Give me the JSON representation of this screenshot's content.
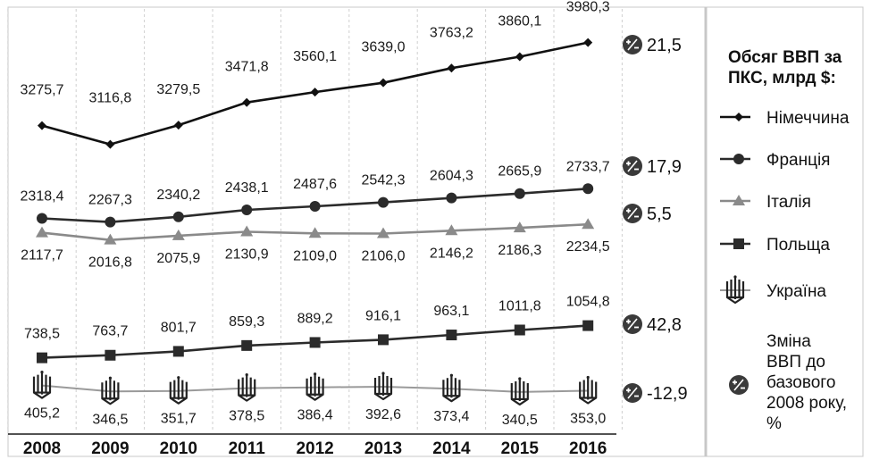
{
  "chart_data": {
    "type": "line",
    "categories": [
      "2008",
      "2009",
      "2010",
      "2011",
      "2012",
      "2013",
      "2014",
      "2015",
      "2016"
    ],
    "series": [
      {
        "name": "Німеччина",
        "marker": "diamond",
        "color": "#111111",
        "values": [
          3275.7,
          3116.8,
          3279.5,
          3471.8,
          3560.1,
          3639.0,
          3763.2,
          3860.1,
          3980.3
        ],
        "labels": [
          "3275,7",
          "3116,8",
          "3279,5",
          "3471,8",
          "3560,1",
          "3639,0",
          "3763,2",
          "3860,1",
          "3980,3"
        ],
        "change": "21,5"
      },
      {
        "name": "Франція",
        "marker": "circle",
        "color": "#2b2b2b",
        "values": [
          2318.4,
          2267.3,
          2340.2,
          2438.1,
          2487.6,
          2542.3,
          2604.3,
          2665.9,
          2733.7
        ],
        "labels": [
          "2318,4",
          "2267,3",
          "2340,2",
          "2438,1",
          "2487,6",
          "2542,3",
          "2604,3",
          "2665,9",
          "2733,7"
        ],
        "change": "17,9"
      },
      {
        "name": "Італія",
        "marker": "triangle",
        "color": "#8a8a8a",
        "values": [
          2117.7,
          2016.8,
          2075.9,
          2130.9,
          2109.0,
          2106.0,
          2146.2,
          2186.3,
          2234.5
        ],
        "labels": [
          "2117,7",
          "2016,8",
          "2075,9",
          "2130,9",
          "2109,0",
          "2106,0",
          "2146,2",
          "2186,3",
          "2234,5"
        ],
        "change": "5,5"
      },
      {
        "name": "Польща",
        "marker": "square",
        "color": "#2b2b2b",
        "values": [
          738.5,
          763.7,
          801.7,
          859.3,
          889.2,
          916.1,
          963.1,
          1011.8,
          1054.8
        ],
        "labels": [
          "738,5",
          "763,7",
          "801,7",
          "859,3",
          "889,2",
          "916,1",
          "963,1",
          "1011,8",
          "1054,8"
        ],
        "change": "42,8"
      },
      {
        "name": "Україна",
        "marker": "trident",
        "color": "#9a9a9a",
        "values": [
          405.2,
          346.5,
          351.7,
          378.5,
          386.4,
          392.6,
          373.4,
          340.5,
          353.0
        ],
        "labels": [
          "405,2",
          "346,5",
          "351,7",
          "378,5",
          "386,4",
          "392,6",
          "373,4",
          "340,5",
          "353,0"
        ],
        "change": "-12,9"
      }
    ],
    "legend_title": "Обсяг ВВП за ПКС, млрд $:",
    "legend_change_label": [
      "Зміна",
      "ВВП до",
      "базового",
      "2008 року,",
      "%"
    ],
    "change_icon": "plus-minus-icon",
    "legend_position": "right",
    "grid": "vertical dashed",
    "xlabel": "",
    "ylabel": ""
  }
}
